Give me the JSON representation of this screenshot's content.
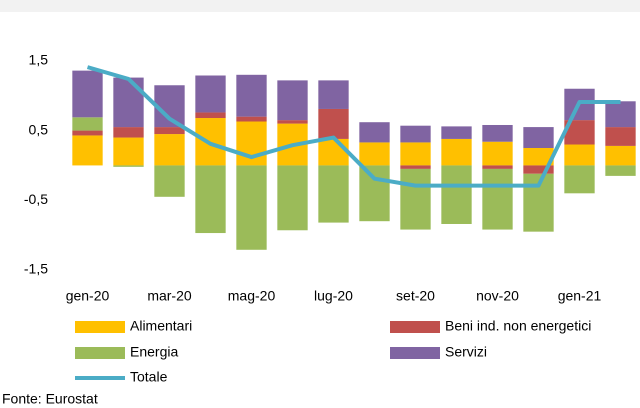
{
  "chart_data": {
    "type": "bar",
    "stacked": true,
    "categories": [
      "gen-20",
      null,
      "mar-20",
      null,
      "mag-20",
      null,
      "lug-20",
      null,
      "set-20",
      null,
      "nov-20",
      null,
      "gen-21",
      null
    ],
    "series": [
      {
        "name": "Alimentari",
        "color": "#FFC000",
        "type": "bar",
        "values": [
          0.43,
          0.4,
          0.45,
          0.68,
          0.63,
          0.6,
          0.38,
          0.33,
          0.33,
          0.38,
          0.34,
          0.25,
          0.3,
          0.28
        ]
      },
      {
        "name": "Beni ind. non energetici",
        "color": "#C0504D",
        "type": "bar",
        "values": [
          0.07,
          0.15,
          0.1,
          0.08,
          0.07,
          0.05,
          0.43,
          0.0,
          -0.05,
          0.0,
          -0.05,
          -0.12,
          0.35,
          0.27
        ]
      },
      {
        "name": "Energia",
        "color": "#9BBB59",
        "type": "bar",
        "values": [
          0.19,
          -0.02,
          -0.45,
          -0.97,
          -1.21,
          -0.93,
          -0.82,
          -0.8,
          -0.87,
          -0.84,
          -0.87,
          -0.83,
          -0.4,
          -0.15
        ]
      },
      {
        "name": "Servizi",
        "color": "#8064A2",
        "type": "bar",
        "values": [
          0.67,
          0.71,
          0.6,
          0.53,
          0.6,
          0.57,
          0.41,
          0.29,
          0.24,
          0.18,
          0.24,
          0.3,
          0.45,
          0.37
        ]
      },
      {
        "name": "Totale",
        "color": "#4BACC6",
        "type": "line",
        "values": [
          1.41,
          1.24,
          0.67,
          0.31,
          0.12,
          0.29,
          0.4,
          -0.19,
          -0.29,
          -0.29,
          -0.29,
          -0.29,
          0.91,
          0.91
        ]
      }
    ],
    "ylim": [
      -1.5,
      2.0
    ],
    "yticks": [
      {
        "value": 1.5,
        "label": "1,5"
      },
      {
        "value": 0.5,
        "label": "0,5"
      },
      {
        "value": -0.5,
        "label": "-0,5"
      },
      {
        "value": -1.5,
        "label": "-1,5"
      }
    ],
    "source": "Fonte: Eurostat"
  }
}
